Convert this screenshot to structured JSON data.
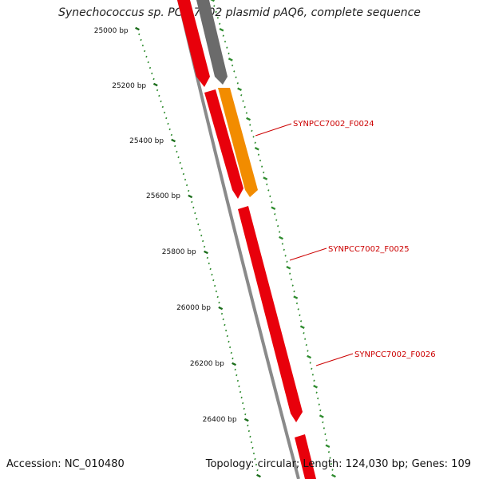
{
  "title": "Synechococcus sp. PCC 7002 plasmid pAQ6, complete sequence",
  "footer": {
    "accession_label": "Accession: NC_010480",
    "topology_label": "Topology: circular; Length: 124,030 bp; Genes: 109"
  },
  "colors": {
    "backbone": "#8a8a8a",
    "gene_forward": "#e8000b",
    "gene_highlight": "#f28c00",
    "gene_other": "#6b6b6b",
    "tick_major": "#1c6e1c",
    "tick_minor": "#2e8b2e",
    "label_text": "#cc0000"
  },
  "ticks": [
    {
      "label": "25000 bp"
    },
    {
      "label": "25200 bp"
    },
    {
      "label": "25400 bp"
    },
    {
      "label": "25600 bp"
    },
    {
      "label": "25800 bp"
    },
    {
      "label": "26000 bp"
    },
    {
      "label": "26200 bp"
    },
    {
      "label": "26400 bp"
    }
  ],
  "gene_labels": [
    {
      "text": "SYNPCC7002_F0024"
    },
    {
      "text": "SYNPCC7002_F0025"
    },
    {
      "text": "SYNPCC7002_F0026"
    }
  ]
}
